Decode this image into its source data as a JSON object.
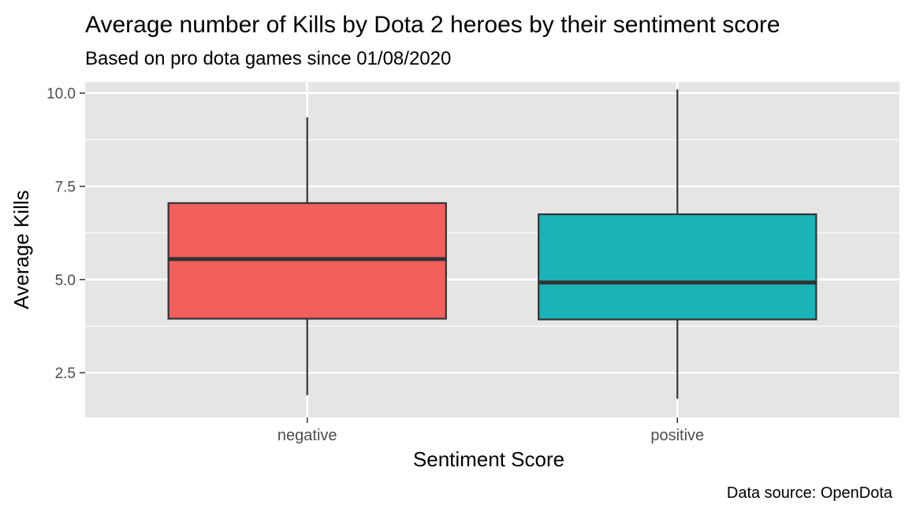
{
  "chart_data": {
    "type": "box",
    "title": "Average number of Kills by Dota 2 heroes by their sentiment score",
    "subtitle": "Based on pro dota games since 01/08/2020",
    "xlabel": "Sentiment Score",
    "ylabel": "Average Kills",
    "caption": "Data source: OpenDota",
    "categories": [
      "negative",
      "positive"
    ],
    "y_ticks": [
      "2.5",
      "5.0",
      "7.5",
      "10.0"
    ],
    "y_tick_values": [
      2.5,
      5.0,
      7.5,
      10.0
    ],
    "ylim": [
      1.3,
      10.3
    ],
    "grid": true,
    "boxes": [
      {
        "category": "negative",
        "whisker_low": 1.9,
        "q1": 3.95,
        "median": 5.55,
        "q3": 7.05,
        "whisker_high": 9.35,
        "color": "#f25f5c"
      },
      {
        "category": "positive",
        "whisker_low": 1.8,
        "q1": 3.93,
        "median": 4.92,
        "q3": 6.75,
        "whisker_high": 10.1,
        "color": "#1ab3b8"
      }
    ],
    "panel_color": "#e5e5e5",
    "grid_color": "#ffffff"
  }
}
